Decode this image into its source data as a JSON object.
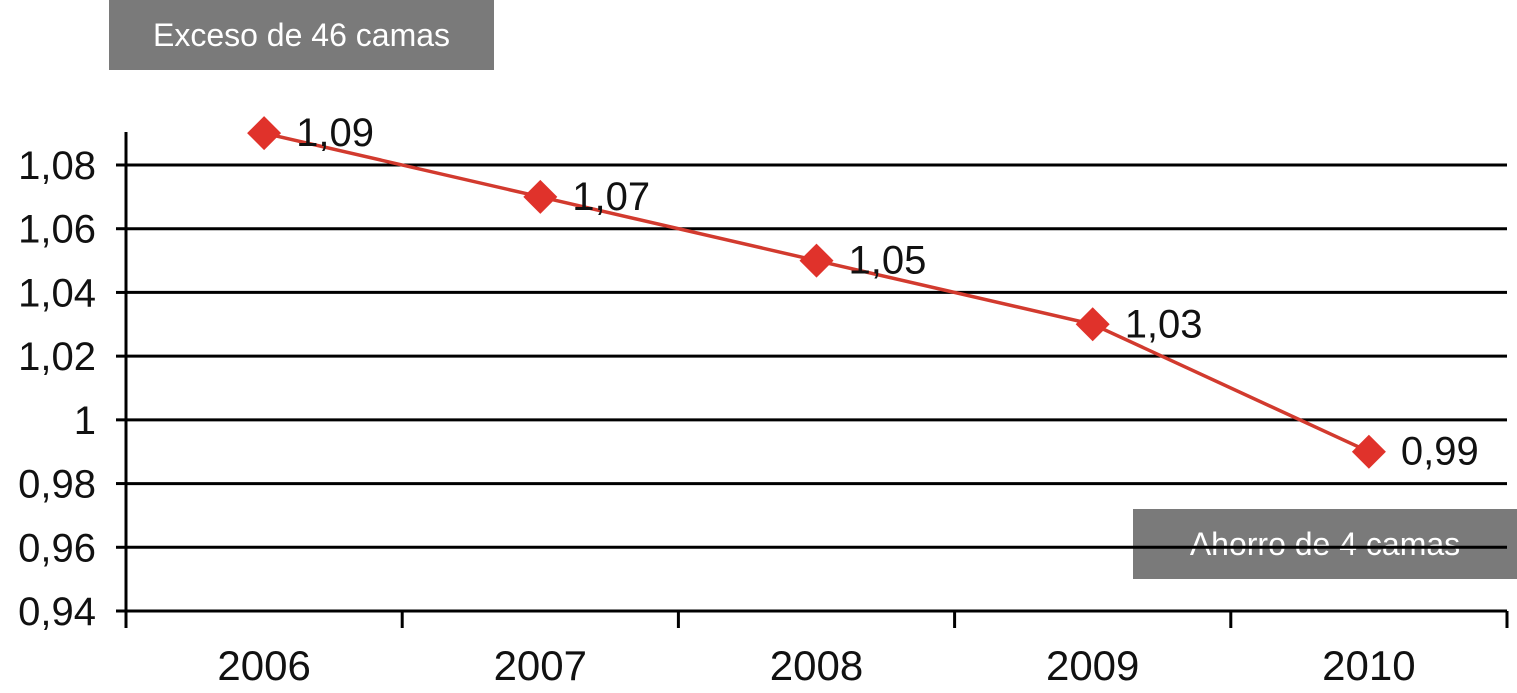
{
  "annotations": {
    "top": "Exceso de 46 camas",
    "bottom": "Ahorro de 4 camas"
  },
  "chart_data": {
    "type": "line",
    "categories": [
      "2006",
      "2007",
      "2008",
      "2009",
      "2010"
    ],
    "series": [
      {
        "values": [
          1.09,
          1.07,
          1.05,
          1.03,
          0.99
        ]
      }
    ],
    "data_labels": [
      "1,09",
      "1,07",
      "1,05",
      "1,03",
      "0,99"
    ],
    "y_ticks": [
      0.94,
      0.96,
      0.98,
      1.0,
      1.02,
      1.04,
      1.06,
      1.08
    ],
    "y_tick_labels": [
      "0,94",
      "0,96",
      "0,98",
      "1",
      "1,02",
      "1,04",
      "1,06",
      "1,08"
    ],
    "ylim": [
      0.94,
      1.09
    ],
    "grid": true,
    "marker": "diamond",
    "colors": {
      "series": "#e0322b",
      "line": "#d23a2e",
      "grid": "#000000",
      "callout_bg": "#7a7a7a",
      "callout_text": "#ffffff"
    }
  }
}
